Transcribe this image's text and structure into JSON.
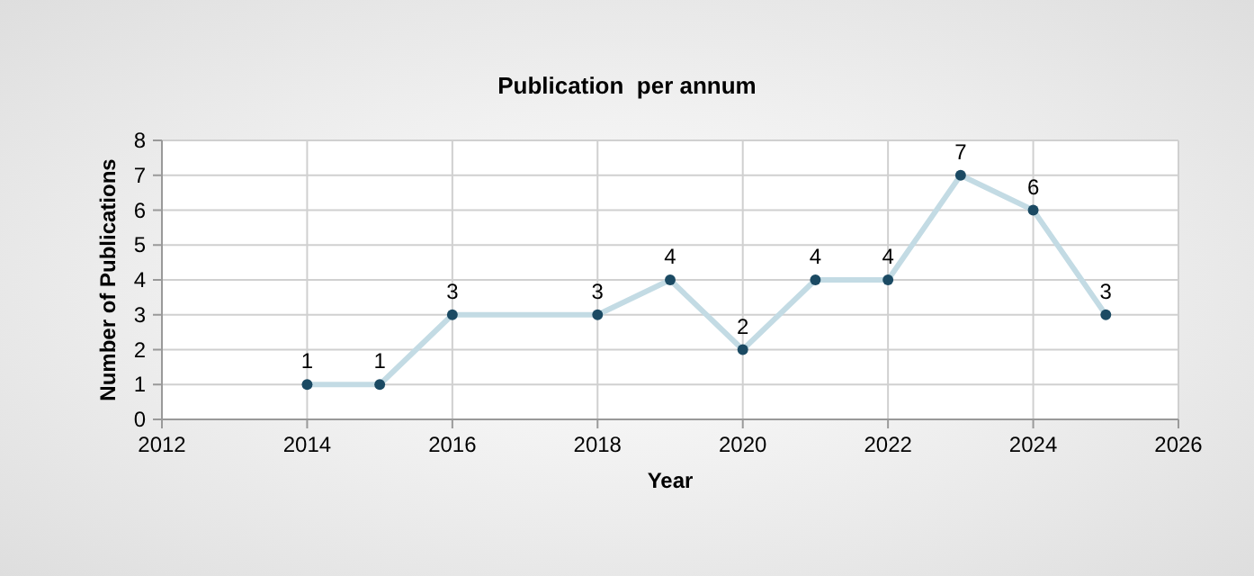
{
  "chart_data": {
    "type": "line",
    "title": "Publication  per annum",
    "xlabel": "Year",
    "ylabel": "Number of Publications",
    "x": [
      2014,
      2015,
      2016,
      2018,
      2019,
      2020,
      2021,
      2022,
      2023,
      2024,
      2025
    ],
    "series": [
      {
        "color": "#c3dbe4",
        "values": [
          1,
          1,
          3,
          3,
          4,
          2,
          4,
          4,
          7,
          6,
          3
        ]
      }
    ],
    "xlim": [
      2012,
      2026
    ],
    "xticks": [
      2012,
      2014,
      2016,
      2018,
      2020,
      2022,
      2024,
      2026
    ],
    "ylim": [
      0,
      8
    ],
    "yticks": [
      0,
      1,
      2,
      3,
      4,
      5,
      6,
      7,
      8
    ],
    "grid": true,
    "marker": "circle",
    "line_style": "solid",
    "data_labels": true
  }
}
